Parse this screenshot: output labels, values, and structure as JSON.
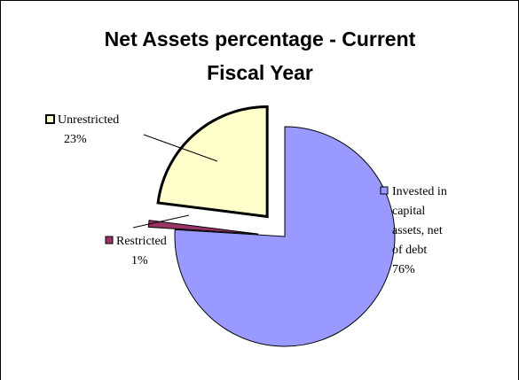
{
  "chart_data": {
    "type": "pie",
    "title_lines": [
      "Net Assets percentage - Current",
      "Fiscal Year"
    ],
    "slices": [
      {
        "name": "Invested in capital assets, net of debt",
        "label_lines": [
          "Invested in",
          "capital",
          "assets, net",
          "of debt"
        ],
        "percent_label": "76%",
        "value": 76,
        "color": "#9999ff",
        "exploded": false
      },
      {
        "name": "Restricted",
        "label_lines": [
          "Restricted"
        ],
        "percent_label": "1%",
        "value": 1,
        "color": "#993366",
        "exploded": true
      },
      {
        "name": "Unrestricted",
        "label_lines": [
          "Unrestricted"
        ],
        "percent_label": "23%",
        "value": 23,
        "color": "#ffffcc",
        "exploded": true
      }
    ],
    "legend": "none",
    "data_labels": "outside with leader lines"
  }
}
